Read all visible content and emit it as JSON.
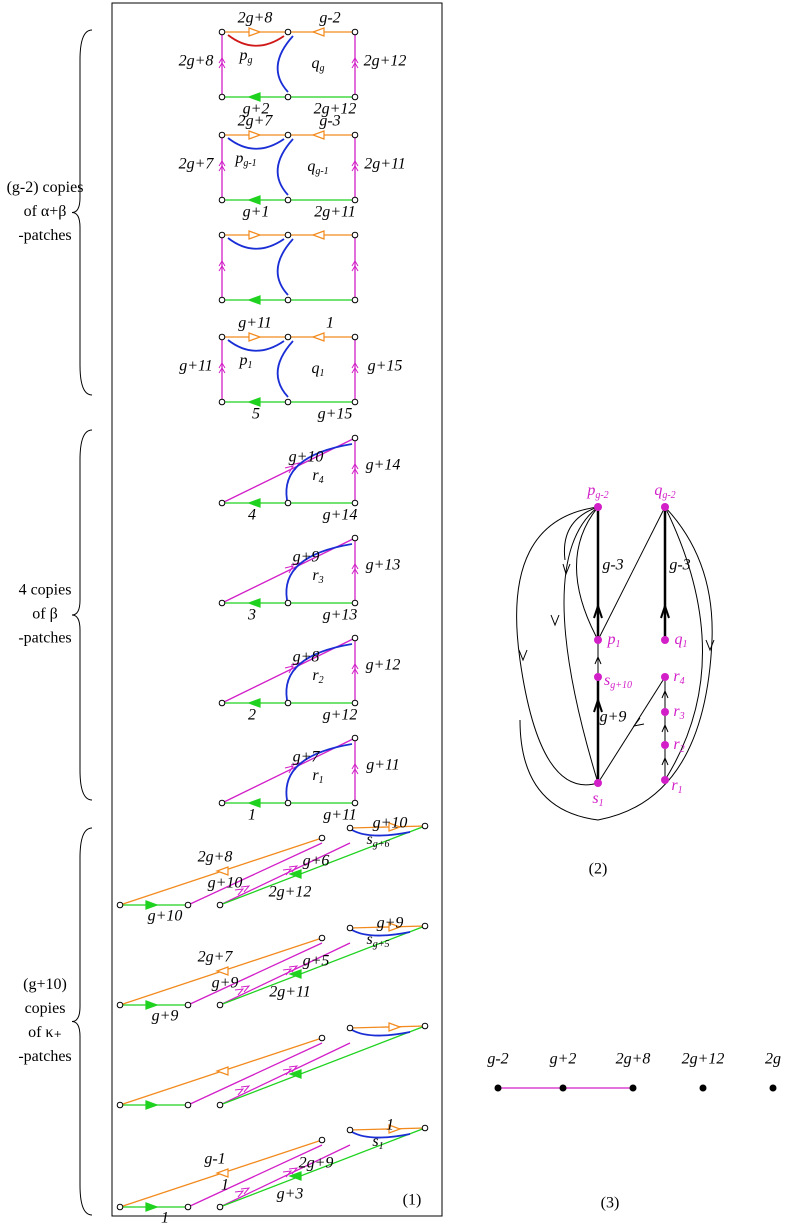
{
  "braces": [
    {
      "lines": [
        "(g-2) copies",
        "of  α+β",
        "-patches"
      ]
    },
    {
      "lines": [
        "4  copies",
        "of   β",
        "-patches"
      ]
    },
    {
      "lines": [
        "(g+10)",
        "copies",
        "of  κ₊",
        "-patches"
      ]
    }
  ],
  "panel_labels": [
    "(1)",
    "(2)",
    "(3)"
  ],
  "ab_patches": [
    {
      "top_left": "2g+8",
      "top_right": "g-2",
      "left": "2g+8",
      "right": "2g+12",
      "bottom_left": "g+2",
      "bottom_right": "2g+12",
      "p": {
        "base": "p",
        "sub": "g"
      },
      "q": {
        "base": "q",
        "sub": "g"
      }
    },
    {
      "top_left": "2g+7",
      "top_right": "g-3",
      "left": "2g+7",
      "right": "2g+11",
      "bottom_left": "g+1",
      "bottom_right": "2g+11",
      "p": {
        "base": "p",
        "sub": "g-1"
      },
      "q": {
        "base": "q",
        "sub": "g-1"
      }
    },
    {},
    {
      "top_left": "g+11",
      "top_right": "1",
      "left": "g+11",
      "right": "g+15",
      "bottom_left": "5",
      "bottom_right": "g+15",
      "p": {
        "base": "p",
        "sub": "1"
      },
      "q": {
        "base": "q",
        "sub": "1"
      }
    }
  ],
  "b_patches": [
    {
      "diag": "g+10",
      "right": "g+14",
      "bottom_left": "4",
      "bottom_right": "g+14",
      "r": {
        "base": "r",
        "sub": "4"
      }
    },
    {
      "diag": "g+9",
      "right": "g+13",
      "bottom_left": "3",
      "bottom_right": "g+13",
      "r": {
        "base": "r",
        "sub": "3"
      }
    },
    {
      "diag": "g+8",
      "right": "g+12",
      "bottom_left": "2",
      "bottom_right": "g+12",
      "r": {
        "base": "r",
        "sub": "2"
      }
    },
    {
      "diag": "g+7",
      "right": "g+11",
      "bottom_left": "1",
      "bottom_right": "g+11",
      "r": {
        "base": "r",
        "sub": "1"
      }
    }
  ],
  "k_patches": [
    {
      "orange": "2g+8",
      "magenta1": "g+10",
      "magenta2": "g+6",
      "green": "2g+12",
      "bottom": "g+10",
      "top": "g+10",
      "s": {
        "base": "s",
        "sub": "g+6"
      }
    },
    {
      "orange": "2g+7",
      "magenta1": "g+9",
      "magenta2": "g+5",
      "green": "2g+11",
      "bottom": "g+9",
      "top": "g+9",
      "s": {
        "base": "s",
        "sub": "g+5"
      }
    },
    {},
    {
      "orange": "g-1",
      "magenta1": "1",
      "magenta2": "2g+9",
      "green": "g+3",
      "bottom": "1",
      "top": "1",
      "s": {
        "base": "s",
        "sub": "1"
      }
    }
  ],
  "graph": {
    "nodes": [
      {
        "base": "p",
        "sub": "g-2"
      },
      {
        "base": "q",
        "sub": "g-2"
      },
      {
        "base": "p",
        "sub": "1"
      },
      {
        "base": "q",
        "sub": "1"
      },
      {
        "base": "s",
        "sub": "g+10"
      },
      {
        "base": "r",
        "sub": "4"
      },
      {
        "base": "r",
        "sub": "3"
      },
      {
        "base": "r",
        "sub": "2"
      },
      {
        "base": "s",
        "sub": "1"
      },
      {
        "base": "r",
        "sub": "1"
      }
    ],
    "edge_labels": [
      "g-3",
      "g-3",
      "g+9"
    ]
  },
  "line_graph": {
    "labels": [
      "g-2",
      "g+2",
      "2g+8",
      "2g+12",
      "2g"
    ]
  }
}
